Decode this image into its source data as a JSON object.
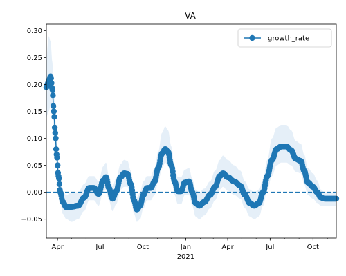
{
  "chart_data": {
    "type": "line",
    "title": "VA",
    "xlabel": "",
    "ylabel": "",
    "x_range": [
      "2020-03-08",
      "2021-11-20"
    ],
    "ylim": [
      -0.085,
      0.312
    ],
    "grid": false,
    "legend_position": "top-right",
    "x_ticks": [
      {
        "date": "2020-04-01",
        "label": "Apr"
      },
      {
        "date": "2020-07-01",
        "label": "Jul"
      },
      {
        "date": "2020-10-01",
        "label": "Oct"
      },
      {
        "date": "2021-01-01",
        "label": "Jan"
      },
      {
        "date": "2021-04-01",
        "label": "Apr"
      },
      {
        "date": "2021-07-01",
        "label": "Jul"
      },
      {
        "date": "2021-10-01",
        "label": "Oct"
      }
    ],
    "x_year_label": "2021",
    "y_ticks": [
      {
        "value": -0.05,
        "label": "−0.05"
      },
      {
        "value": 0.0,
        "label": "0.00"
      },
      {
        "value": 0.05,
        "label": "0.05"
      },
      {
        "value": 0.1,
        "label": "0.10"
      },
      {
        "value": 0.15,
        "label": "0.15"
      },
      {
        "value": 0.2,
        "label": "0.20"
      },
      {
        "value": 0.25,
        "label": "0.25"
      },
      {
        "value": 0.3,
        "label": "0.30"
      }
    ],
    "reference_line": {
      "y": 0.0,
      "style": "dashed"
    },
    "series": [
      {
        "name": "growth_rate",
        "color": "#1f77b4",
        "band_color": "#c6dbef",
        "marker": "circle",
        "points": [
          {
            "date": "2020-03-08",
            "y": 0.195,
            "lo": 0.14,
            "hi": 0.25
          },
          {
            "date": "2020-03-13",
            "y": 0.205,
            "lo": 0.15,
            "hi": 0.29
          },
          {
            "date": "2020-03-17",
            "y": 0.215,
            "lo": 0.16,
            "hi": 0.28
          },
          {
            "date": "2020-03-21",
            "y": 0.19,
            "lo": 0.14,
            "hi": 0.24
          },
          {
            "date": "2020-03-24",
            "y": 0.15,
            "lo": 0.11,
            "hi": 0.19
          },
          {
            "date": "2020-03-27",
            "y": 0.11,
            "lo": 0.08,
            "hi": 0.14
          },
          {
            "date": "2020-03-30",
            "y": 0.07,
            "lo": 0.05,
            "hi": 0.09
          },
          {
            "date": "2020-04-03",
            "y": 0.03,
            "lo": 0.01,
            "hi": 0.05
          },
          {
            "date": "2020-04-07",
            "y": 0.0,
            "lo": -0.02,
            "hi": 0.02
          },
          {
            "date": "2020-04-12",
            "y": -0.018,
            "lo": -0.04,
            "hi": 0.0
          },
          {
            "date": "2020-04-20",
            "y": -0.028,
            "lo": -0.05,
            "hi": -0.005
          },
          {
            "date": "2020-05-01",
            "y": -0.027,
            "lo": -0.055,
            "hi": 0.0
          },
          {
            "date": "2020-05-15",
            "y": -0.025,
            "lo": -0.05,
            "hi": 0.0
          },
          {
            "date": "2020-05-28",
            "y": -0.01,
            "lo": -0.035,
            "hi": 0.015
          },
          {
            "date": "2020-06-08",
            "y": 0.008,
            "lo": -0.015,
            "hi": 0.03
          },
          {
            "date": "2020-06-18",
            "y": 0.008,
            "lo": -0.015,
            "hi": 0.03
          },
          {
            "date": "2020-06-28",
            "y": -0.003,
            "lo": -0.025,
            "hi": 0.02
          },
          {
            "date": "2020-07-08",
            "y": 0.022,
            "lo": 0.0,
            "hi": 0.048
          },
          {
            "date": "2020-07-14",
            "y": 0.028,
            "lo": 0.005,
            "hi": 0.055
          },
          {
            "date": "2020-07-20",
            "y": 0.008,
            "lo": -0.015,
            "hi": 0.03
          },
          {
            "date": "2020-07-28",
            "y": -0.012,
            "lo": -0.035,
            "hi": 0.012
          },
          {
            "date": "2020-08-05",
            "y": 0.002,
            "lo": -0.022,
            "hi": 0.026
          },
          {
            "date": "2020-08-14",
            "y": 0.028,
            "lo": 0.005,
            "hi": 0.052
          },
          {
            "date": "2020-08-22",
            "y": 0.035,
            "lo": 0.01,
            "hi": 0.06
          },
          {
            "date": "2020-08-29",
            "y": 0.034,
            "lo": 0.01,
            "hi": 0.058
          },
          {
            "date": "2020-09-05",
            "y": 0.015,
            "lo": -0.01,
            "hi": 0.04
          },
          {
            "date": "2020-09-12",
            "y": -0.015,
            "lo": -0.04,
            "hi": 0.01
          },
          {
            "date": "2020-09-18",
            "y": -0.032,
            "lo": -0.055,
            "hi": -0.01
          },
          {
            "date": "2020-09-25",
            "y": -0.025,
            "lo": -0.05,
            "hi": 0.0
          },
          {
            "date": "2020-10-02",
            "y": -0.005,
            "lo": -0.03,
            "hi": 0.02
          },
          {
            "date": "2020-10-10",
            "y": 0.008,
            "lo": -0.015,
            "hi": 0.03
          },
          {
            "date": "2020-10-18",
            "y": 0.008,
            "lo": -0.015,
            "hi": 0.03
          },
          {
            "date": "2020-10-26",
            "y": 0.02,
            "lo": -0.005,
            "hi": 0.045
          },
          {
            "date": "2020-11-03",
            "y": 0.045,
            "lo": 0.02,
            "hi": 0.075
          },
          {
            "date": "2020-11-11",
            "y": 0.072,
            "lo": 0.045,
            "hi": 0.11
          },
          {
            "date": "2020-11-18",
            "y": 0.08,
            "lo": 0.055,
            "hi": 0.122
          },
          {
            "date": "2020-11-24",
            "y": 0.075,
            "lo": 0.05,
            "hi": 0.115
          },
          {
            "date": "2020-12-01",
            "y": 0.05,
            "lo": 0.025,
            "hi": 0.085
          },
          {
            "date": "2020-12-08",
            "y": 0.02,
            "lo": -0.005,
            "hi": 0.048
          },
          {
            "date": "2020-12-15",
            "y": 0.002,
            "lo": -0.022,
            "hi": 0.028
          },
          {
            "date": "2020-12-22",
            "y": 0.002,
            "lo": -0.022,
            "hi": 0.028
          },
          {
            "date": "2020-12-30",
            "y": 0.018,
            "lo": -0.005,
            "hi": 0.042
          },
          {
            "date": "2021-01-08",
            "y": 0.02,
            "lo": -0.005,
            "hi": 0.045
          },
          {
            "date": "2021-01-15",
            "y": 0.0,
            "lo": -0.025,
            "hi": 0.025
          },
          {
            "date": "2021-01-22",
            "y": -0.02,
            "lo": -0.045,
            "hi": 0.005
          },
          {
            "date": "2021-01-30",
            "y": -0.025,
            "lo": -0.05,
            "hi": 0.0
          },
          {
            "date": "2021-02-10",
            "y": -0.018,
            "lo": -0.043,
            "hi": 0.007
          },
          {
            "date": "2021-02-22",
            "y": -0.005,
            "lo": -0.03,
            "hi": 0.02
          },
          {
            "date": "2021-03-05",
            "y": 0.01,
            "lo": -0.015,
            "hi": 0.04
          },
          {
            "date": "2021-03-15",
            "y": 0.03,
            "lo": 0.005,
            "hi": 0.06
          },
          {
            "date": "2021-03-22",
            "y": 0.035,
            "lo": 0.01,
            "hi": 0.068
          },
          {
            "date": "2021-04-01",
            "y": 0.028,
            "lo": 0.003,
            "hi": 0.06
          },
          {
            "date": "2021-04-15",
            "y": 0.02,
            "lo": -0.005,
            "hi": 0.05
          },
          {
            "date": "2021-04-28",
            "y": 0.012,
            "lo": -0.012,
            "hi": 0.04
          },
          {
            "date": "2021-05-08",
            "y": -0.005,
            "lo": -0.03,
            "hi": 0.02
          },
          {
            "date": "2021-05-18",
            "y": -0.02,
            "lo": -0.045,
            "hi": 0.005
          },
          {
            "date": "2021-05-28",
            "y": -0.025,
            "lo": -0.05,
            "hi": 0.0
          },
          {
            "date": "2021-06-07",
            "y": -0.02,
            "lo": -0.045,
            "hi": 0.005
          },
          {
            "date": "2021-06-16",
            "y": 0.0,
            "lo": -0.025,
            "hi": 0.025
          },
          {
            "date": "2021-06-25",
            "y": 0.03,
            "lo": 0.005,
            "hi": 0.06
          },
          {
            "date": "2021-07-05",
            "y": 0.06,
            "lo": 0.03,
            "hi": 0.1
          },
          {
            "date": "2021-07-15",
            "y": 0.08,
            "lo": 0.05,
            "hi": 0.12
          },
          {
            "date": "2021-07-25",
            "y": 0.085,
            "lo": 0.055,
            "hi": 0.125
          },
          {
            "date": "2021-08-05",
            "y": 0.085,
            "lo": 0.055,
            "hi": 0.125
          },
          {
            "date": "2021-08-15",
            "y": 0.078,
            "lo": 0.05,
            "hi": 0.115
          },
          {
            "date": "2021-08-25",
            "y": 0.062,
            "lo": 0.038,
            "hi": 0.095
          },
          {
            "date": "2021-09-05",
            "y": 0.058,
            "lo": 0.035,
            "hi": 0.09
          },
          {
            "date": "2021-09-12",
            "y": 0.04,
            "lo": 0.015,
            "hi": 0.07
          },
          {
            "date": "2021-09-20",
            "y": 0.018,
            "lo": -0.005,
            "hi": 0.045
          },
          {
            "date": "2021-10-01",
            "y": 0.01,
            "lo": -0.012,
            "hi": 0.035
          },
          {
            "date": "2021-10-10",
            "y": 0.0,
            "lo": -0.02,
            "hi": 0.022
          },
          {
            "date": "2021-10-18",
            "y": -0.01,
            "lo": -0.025,
            "hi": 0.005
          },
          {
            "date": "2021-10-26",
            "y": -0.012,
            "lo": -0.025,
            "hi": 0.0
          },
          {
            "date": "2021-11-05",
            "y": -0.012,
            "lo": -0.025,
            "hi": 0.0
          },
          {
            "date": "2021-11-20",
            "y": -0.012,
            "lo": -0.025,
            "hi": 0.0
          }
        ]
      }
    ]
  }
}
